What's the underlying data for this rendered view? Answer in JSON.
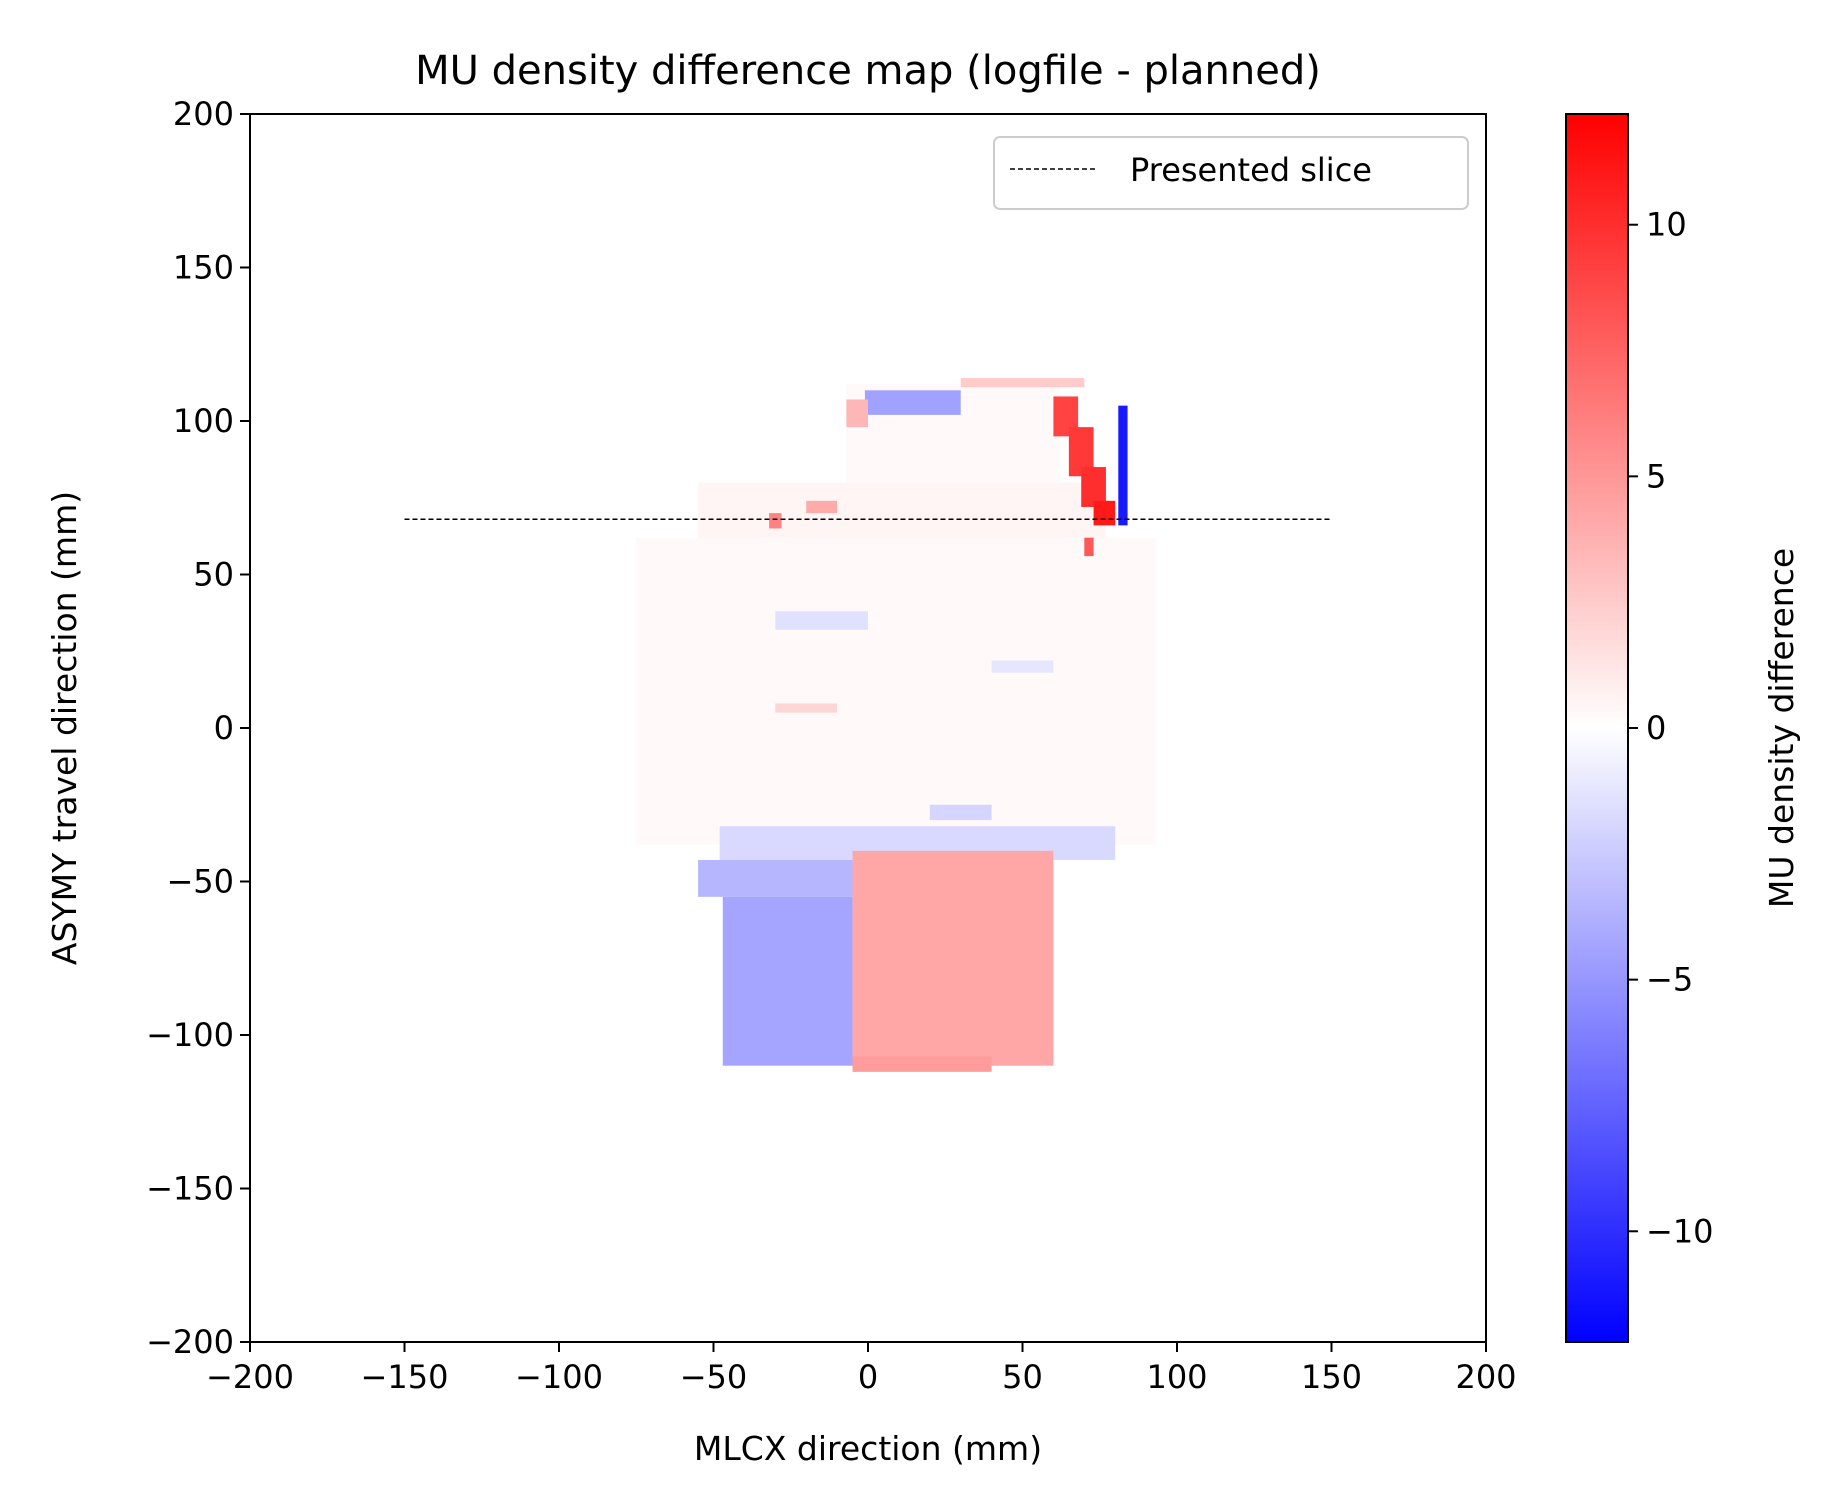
{
  "chart_data": {
    "type": "heatmap",
    "title": "MU density difference map (logfile - planned)",
    "xlabel": "MLCX direction (mm)",
    "ylabel": "ASYMY travel direction (mm)",
    "xlim": [
      -200,
      200
    ],
    "ylim": [
      -200,
      200
    ],
    "xticks": [
      -200,
      -150,
      -100,
      -50,
      0,
      50,
      100,
      150,
      200
    ],
    "yticks": [
      -200,
      -150,
      -100,
      -50,
      0,
      50,
      100,
      150,
      200
    ],
    "xtick_labels": [
      "−200",
      "−150",
      "−100",
      "−50",
      "0",
      "50",
      "100",
      "150",
      "200"
    ],
    "ytick_labels": [
      "−200",
      "−150",
      "−100",
      "−50",
      "0",
      "50",
      "100",
      "150",
      "200"
    ],
    "colorbar": {
      "label": "MU density difference",
      "vmin": -12.2,
      "vmax": 12.2,
      "ticks": [
        -10,
        -5,
        0,
        5,
        10
      ],
      "tick_labels": [
        "−10",
        "−5",
        "0",
        "5",
        "10"
      ],
      "colors": [
        "#0000ff",
        "#ffffff",
        "#ff0000"
      ]
    },
    "grid": false,
    "legend": {
      "position": "upper-right",
      "entries": [
        {
          "label": "Presented slice",
          "style": "dashed",
          "color": "#000000"
        }
      ]
    },
    "slice_line": {
      "y": 68,
      "x": [
        -150,
        150
      ]
    },
    "field_regions": [
      {
        "x": [
          -75,
          93
        ],
        "y": [
          -38,
          62
        ],
        "value": 0.3
      },
      {
        "x": [
          -55,
          77
        ],
        "y": [
          62,
          80
        ],
        "value": 0.5
      },
      {
        "x": [
          -7,
          62
        ],
        "y": [
          80,
          112
        ],
        "value": 0.3
      }
    ],
    "difference_regions": [
      {
        "x": [
          -48,
          80
        ],
        "y": [
          -43,
          -32
        ],
        "value": -1.8
      },
      {
        "x": [
          -55,
          -5
        ],
        "y": [
          -55,
          -43
        ],
        "value": -3.5
      },
      {
        "x": [
          -47,
          -5
        ],
        "y": [
          -110,
          -55
        ],
        "value": -4.3
      },
      {
        "x": [
          -5,
          60
        ],
        "y": [
          -110,
          -40
        ],
        "value": 4.2
      },
      {
        "x": [
          -5,
          40
        ],
        "y": [
          -112,
          -107
        ],
        "value": 4.8
      },
      {
        "x": [
          -1,
          30
        ],
        "y": [
          102,
          110
        ],
        "value": -4.5
      },
      {
        "x": [
          30,
          70
        ],
        "y": [
          111,
          114
        ],
        "value": 2.5
      },
      {
        "x": [
          60,
          68
        ],
        "y": [
          95,
          108
        ],
        "value": 9.0
      },
      {
        "x": [
          65,
          73
        ],
        "y": [
          82,
          98
        ],
        "value": 9.5
      },
      {
        "x": [
          69,
          77
        ],
        "y": [
          72,
          85
        ],
        "value": 10.0
      },
      {
        "x": [
          73,
          80
        ],
        "y": [
          66,
          74
        ],
        "value": 11.0
      },
      {
        "x": [
          81,
          84
        ],
        "y": [
          66,
          105
        ],
        "value": -11.0
      },
      {
        "x": [
          70,
          73
        ],
        "y": [
          56,
          62
        ],
        "value": 8.0
      },
      {
        "x": [
          -32,
          -28
        ],
        "y": [
          65,
          70
        ],
        "value": 6.0
      },
      {
        "x": [
          -20,
          -10
        ],
        "y": [
          70,
          74
        ],
        "value": 4.0
      },
      {
        "x": [
          -7,
          0
        ],
        "y": [
          98,
          107
        ],
        "value": 3.5
      },
      {
        "x": [
          -30,
          0
        ],
        "y": [
          32,
          38
        ],
        "value": -1.5
      },
      {
        "x": [
          20,
          40
        ],
        "y": [
          -30,
          -25
        ],
        "value": -2.0
      },
      {
        "x": [
          -30,
          -10
        ],
        "y": [
          5,
          8
        ],
        "value": 2.0
      },
      {
        "x": [
          40,
          60
        ],
        "y": [
          18,
          22
        ],
        "value": -1.2
      }
    ]
  }
}
